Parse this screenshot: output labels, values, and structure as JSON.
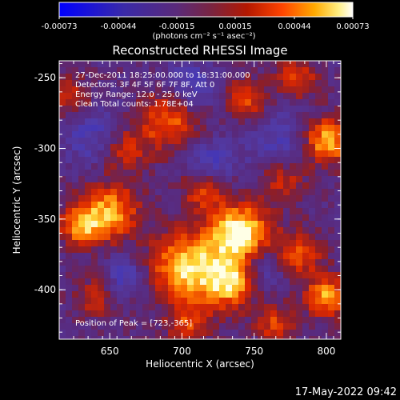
{
  "colorbar": {
    "ticks": [
      "-0.00073",
      "-0.00044",
      "-0.00015",
      "0.00015",
      "0.00044",
      "0.00073"
    ],
    "unit_line": "(photons cm⁻² s⁻¹ asec⁻²)"
  },
  "title": "Reconstructed RHESSI Image",
  "info": {
    "time_range": "27-Dec-2011 18:25:00.000 to 18:31:00.000",
    "detectors": "Detectors: 3F 4F 5F 6F 7F 8F, Att 0",
    "energy": "Energy Range: 12.0 - 25.0 keV",
    "clean": "Clean     Total counts: 1.78E+04",
    "peak": "Position of Peak = [723,-365]"
  },
  "axes": {
    "xlabel": "Heliocentric X (arcsec)",
    "ylabel": "Heliocentric Y (arcsec)",
    "x_ticks": [
      "650",
      "700",
      "750",
      "800"
    ],
    "y_ticks": [
      "-250",
      "-300",
      "-350",
      "-400"
    ],
    "x_range": [
      615,
      810
    ],
    "y_range": [
      -435,
      -238
    ]
  },
  "footer_date": "17-May-2022 09:42",
  "colors": {
    "bg": "#000000",
    "text": "#ffffff"
  }
}
